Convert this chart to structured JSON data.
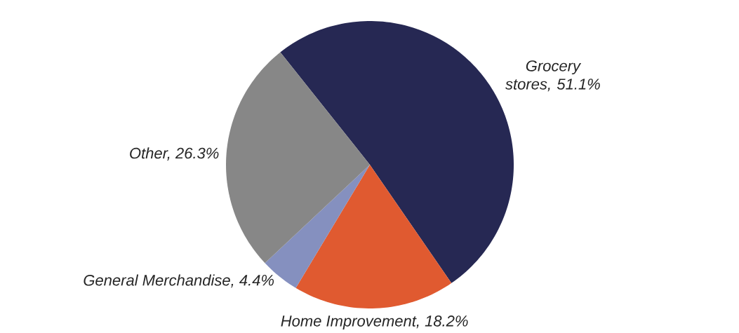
{
  "chart_data": {
    "type": "pie",
    "categories": [
      null,
      null,
      null,
      null
    ],
    "values": [
      51.1,
      18.2,
      4.4,
      26.3
    ],
    "value_labels": [
      "Grocery stores, 51.1%",
      "Home Improvement, 18.2%",
      "General Merchandise, 4.4%",
      "Other, 26.3%"
    ],
    "colors": [
      "#262853",
      "#e05a30",
      "#8590bf",
      "#878787"
    ]
  }
}
